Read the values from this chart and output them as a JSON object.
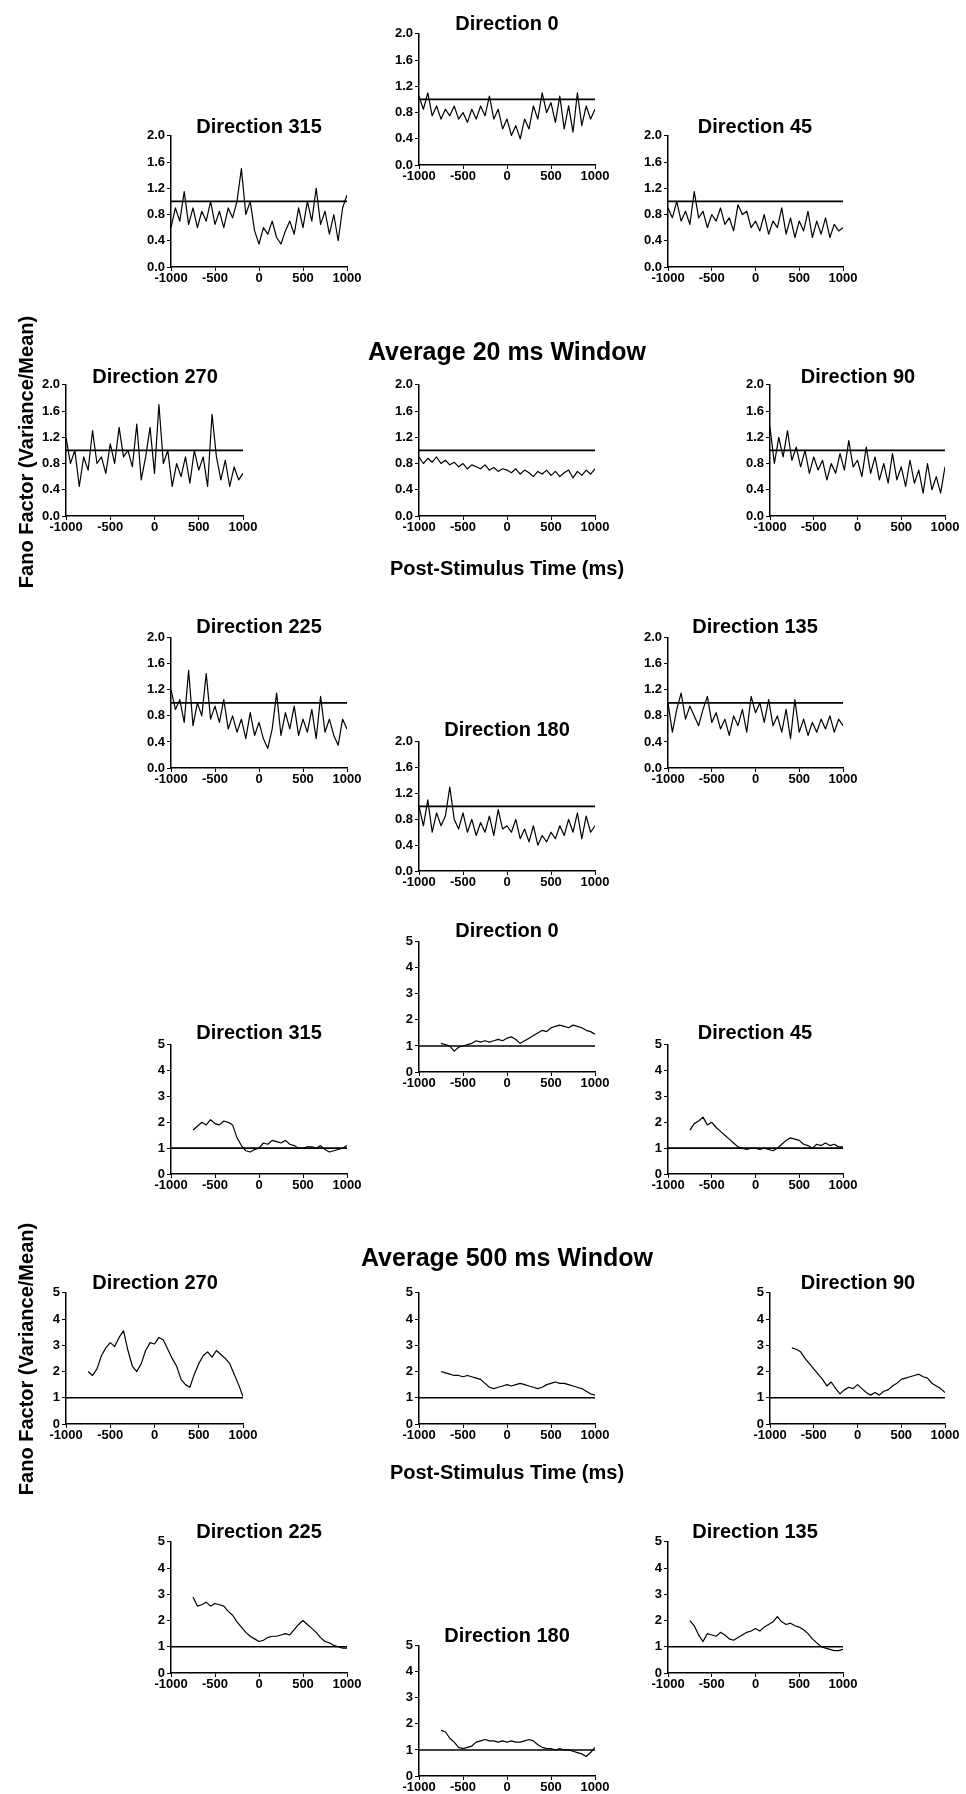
{
  "chart_data": [
    {
      "type": "line",
      "title": "Direction 0",
      "x": [
        -1000,
        -950,
        -900,
        -850,
        -800,
        -750,
        -700,
        -650,
        -600,
        -550,
        -500,
        -450,
        -400,
        -350,
        -300,
        -250,
        -200,
        -150,
        -100,
        -50,
        0,
        50,
        100,
        150,
        200,
        250,
        300,
        350,
        400,
        450,
        500,
        550,
        600,
        650,
        700,
        750,
        800,
        850,
        900,
        950,
        1000
      ],
      "values": [
        1.05,
        0.85,
        1.1,
        0.75,
        0.9,
        0.7,
        0.85,
        0.75,
        0.9,
        0.7,
        0.8,
        0.65,
        0.85,
        0.7,
        0.9,
        0.75,
        1.05,
        0.7,
        0.85,
        0.55,
        0.7,
        0.45,
        0.6,
        0.4,
        0.7,
        0.55,
        0.9,
        0.7,
        1.1,
        0.8,
        0.95,
        0.65,
        1.05,
        0.55,
        0.9,
        0.5,
        1.1,
        0.6,
        0.9,
        0.7,
        0.85
      ],
      "color": "#000000",
      "xlim": [
        -1000,
        1000
      ],
      "xticks": [
        -1000,
        -500,
        0,
        500,
        1000
      ],
      "ylim": [
        0,
        2
      ],
      "yticks": [
        {
          "value": 0,
          "label": "0.0"
        },
        {
          "value": 0.4,
          "label": "0.4"
        },
        {
          "value": 0.8,
          "label": "0.8"
        },
        {
          "value": 1.2,
          "label": "1.2"
        },
        {
          "value": 1.6,
          "label": "1.6"
        },
        {
          "value": 2,
          "label": "2.0"
        }
      ],
      "ref_lines": [
        {
          "axis": "y",
          "value": 1
        }
      ]
    },
    {
      "type": "line",
      "title": "Direction 315",
      "x": [
        -1000,
        -950,
        -900,
        -850,
        -800,
        -750,
        -700,
        -650,
        -600,
        -550,
        -500,
        -450,
        -400,
        -350,
        -300,
        -250,
        -200,
        -150,
        -100,
        -50,
        0,
        50,
        100,
        150,
        200,
        250,
        300,
        350,
        400,
        450,
        500,
        550,
        600,
        650,
        700,
        750,
        800,
        850,
        900,
        950,
        1000
      ],
      "values": [
        0.6,
        0.9,
        0.7,
        1.15,
        0.65,
        0.9,
        0.6,
        0.85,
        0.7,
        1.0,
        0.65,
        0.85,
        0.6,
        0.9,
        0.75,
        1.0,
        1.5,
        0.8,
        1.0,
        0.55,
        0.35,
        0.6,
        0.5,
        0.7,
        0.45,
        0.35,
        0.55,
        0.7,
        0.5,
        0.9,
        0.6,
        1.0,
        0.7,
        1.2,
        0.65,
        0.85,
        0.5,
        0.8,
        0.4,
        0.9,
        1.1
      ],
      "color": "#000000",
      "xlim": [
        -1000,
        1000
      ],
      "xticks": [
        -1000,
        -500,
        0,
        500,
        1000
      ],
      "ylim": [
        0,
        2
      ],
      "yticks": [
        {
          "value": 0,
          "label": "0.0"
        },
        {
          "value": 0.4,
          "label": "0.4"
        },
        {
          "value": 0.8,
          "label": "0.8"
        },
        {
          "value": 1.2,
          "label": "1.2"
        },
        {
          "value": 1.6,
          "label": "1.6"
        },
        {
          "value": 2,
          "label": "2.0"
        }
      ],
      "ref_lines": [
        {
          "axis": "y",
          "value": 1
        }
      ]
    },
    {
      "type": "line",
      "title": "Direction 45",
      "x": [
        -1000,
        -950,
        -900,
        -850,
        -800,
        -750,
        -700,
        -650,
        -600,
        -550,
        -500,
        -450,
        -400,
        -350,
        -300,
        -250,
        -200,
        -150,
        -100,
        -50,
        0,
        50,
        100,
        150,
        200,
        250,
        300,
        350,
        400,
        450,
        500,
        550,
        600,
        650,
        700,
        750,
        800,
        850,
        900,
        950,
        1000
      ],
      "values": [
        0.9,
        0.75,
        1.0,
        0.7,
        0.85,
        0.65,
        1.15,
        0.75,
        0.85,
        0.6,
        0.8,
        0.7,
        0.9,
        0.65,
        0.75,
        0.55,
        0.95,
        0.8,
        0.85,
        0.6,
        0.7,
        0.55,
        0.8,
        0.5,
        0.7,
        0.6,
        0.9,
        0.5,
        0.75,
        0.45,
        0.7,
        0.55,
        0.85,
        0.45,
        0.7,
        0.5,
        0.75,
        0.45,
        0.65,
        0.55,
        0.6
      ],
      "color": "#000000",
      "xlim": [
        -1000,
        1000
      ],
      "xticks": [
        -1000,
        -500,
        0,
        500,
        1000
      ],
      "ylim": [
        0,
        2
      ],
      "yticks": [
        {
          "value": 0,
          "label": "0.0"
        },
        {
          "value": 0.4,
          "label": "0.4"
        },
        {
          "value": 0.8,
          "label": "0.8"
        },
        {
          "value": 1.2,
          "label": "1.2"
        },
        {
          "value": 1.6,
          "label": "1.6"
        },
        {
          "value": 2,
          "label": "2.0"
        }
      ],
      "ref_lines": [
        {
          "axis": "y",
          "value": 1
        }
      ]
    },
    {
      "type": "line",
      "title": "Direction 270",
      "ylabel": "Fano Factor (Variance/Mean)",
      "x": [
        -1000,
        -950,
        -900,
        -850,
        -800,
        -750,
        -700,
        -650,
        -600,
        -550,
        -500,
        -450,
        -400,
        -350,
        -300,
        -250,
        -200,
        -150,
        -100,
        -50,
        0,
        50,
        100,
        150,
        200,
        250,
        300,
        350,
        400,
        450,
        500,
        550,
        600,
        650,
        700,
        750,
        800,
        850,
        900,
        950,
        1000
      ],
      "values": [
        1.2,
        0.8,
        1.0,
        0.45,
        0.9,
        0.7,
        1.3,
        0.8,
        0.9,
        0.65,
        1.1,
        0.8,
        1.35,
        0.9,
        1.0,
        0.75,
        1.4,
        0.55,
        0.9,
        1.35,
        0.65,
        1.7,
        0.8,
        1.0,
        0.45,
        0.8,
        0.6,
        0.9,
        0.5,
        1.0,
        0.7,
        0.9,
        0.45,
        1.55,
        0.9,
        0.55,
        0.85,
        0.45,
        0.75,
        0.55,
        0.65
      ],
      "color": "#000000",
      "xlim": [
        -1000,
        1000
      ],
      "xticks": [
        -1000,
        -500,
        0,
        500,
        1000
      ],
      "ylim": [
        0,
        2
      ],
      "yticks": [
        {
          "value": 0,
          "label": "0.0"
        },
        {
          "value": 0.4,
          "label": "0.4"
        },
        {
          "value": 0.8,
          "label": "0.8"
        },
        {
          "value": 1.2,
          "label": "1.2"
        },
        {
          "value": 1.6,
          "label": "1.6"
        },
        {
          "value": 2,
          "label": "2.0"
        }
      ],
      "ref_lines": [
        {
          "axis": "y",
          "value": 1
        }
      ]
    },
    {
      "type": "line",
      "title": "Average 20 ms Window",
      "xlabel": "Post-Stimulus Time (ms)",
      "x": [
        -1000,
        -950,
        -900,
        -850,
        -800,
        -750,
        -700,
        -650,
        -600,
        -550,
        -500,
        -450,
        -400,
        -350,
        -300,
        -250,
        -200,
        -150,
        -100,
        -50,
        0,
        50,
        100,
        150,
        200,
        250,
        300,
        350,
        400,
        450,
        500,
        550,
        600,
        650,
        700,
        750,
        800,
        850,
        900,
        950,
        1000
      ],
      "values": [
        0.9,
        0.8,
        0.88,
        0.82,
        0.9,
        0.8,
        0.85,
        0.78,
        0.82,
        0.75,
        0.8,
        0.72,
        0.78,
        0.75,
        0.72,
        0.78,
        0.7,
        0.74,
        0.68,
        0.72,
        0.7,
        0.66,
        0.72,
        0.64,
        0.7,
        0.66,
        0.6,
        0.68,
        0.64,
        0.7,
        0.62,
        0.68,
        0.6,
        0.66,
        0.7,
        0.58,
        0.68,
        0.62,
        0.7,
        0.64,
        0.72
      ],
      "color": "#000000",
      "xlim": [
        -1000,
        1000
      ],
      "xticks": [
        -1000,
        -500,
        0,
        500,
        1000
      ],
      "ylim": [
        0,
        2
      ],
      "yticks": [
        {
          "value": 0,
          "label": "0.0"
        },
        {
          "value": 0.4,
          "label": "0.4"
        },
        {
          "value": 0.8,
          "label": "0.8"
        },
        {
          "value": 1.2,
          "label": "1.2"
        },
        {
          "value": 1.6,
          "label": "1.6"
        },
        {
          "value": 2,
          "label": "2.0"
        }
      ],
      "ref_lines": [
        {
          "axis": "y",
          "value": 1
        }
      ]
    },
    {
      "type": "line",
      "title": "Direction 90",
      "x": [
        -1000,
        -950,
        -900,
        -850,
        -800,
        -750,
        -700,
        -650,
        -600,
        -550,
        -500,
        -450,
        -400,
        -350,
        -300,
        -250,
        -200,
        -150,
        -100,
        -50,
        0,
        50,
        100,
        150,
        200,
        250,
        300,
        350,
        400,
        450,
        500,
        550,
        600,
        650,
        700,
        750,
        800,
        850,
        900,
        950,
        1000
      ],
      "values": [
        1.35,
        0.8,
        1.2,
        0.9,
        1.3,
        0.85,
        1.05,
        0.75,
        1.0,
        0.65,
        0.9,
        0.7,
        0.85,
        0.55,
        0.8,
        0.65,
        0.95,
        0.7,
        1.15,
        0.75,
        0.85,
        0.6,
        1.05,
        0.65,
        0.9,
        0.55,
        0.8,
        0.5,
        0.95,
        0.55,
        0.75,
        0.45,
        0.85,
        0.5,
        0.7,
        0.35,
        0.8,
        0.4,
        0.6,
        0.35,
        0.75
      ],
      "color": "#000000",
      "xlim": [
        -1000,
        1000
      ],
      "xticks": [
        -1000,
        -500,
        0,
        500,
        1000
      ],
      "ylim": [
        0,
        2
      ],
      "yticks": [
        {
          "value": 0,
          "label": "0.0"
        },
        {
          "value": 0.4,
          "label": "0.4"
        },
        {
          "value": 0.8,
          "label": "0.8"
        },
        {
          "value": 1.2,
          "label": "1.2"
        },
        {
          "value": 1.6,
          "label": "1.6"
        },
        {
          "value": 2,
          "label": "2.0"
        }
      ],
      "ref_lines": [
        {
          "axis": "y",
          "value": 1
        }
      ]
    },
    {
      "type": "line",
      "title": "Direction 225",
      "x": [
        -1000,
        -950,
        -900,
        -850,
        -800,
        -750,
        -700,
        -650,
        -600,
        -550,
        -500,
        -450,
        -400,
        -350,
        -300,
        -250,
        -200,
        -150,
        -100,
        -50,
        0,
        50,
        100,
        150,
        200,
        250,
        300,
        350,
        400,
        450,
        500,
        550,
        600,
        650,
        700,
        750,
        800,
        850,
        900,
        950,
        1000
      ],
      "values": [
        1.2,
        0.9,
        1.05,
        0.7,
        1.5,
        0.65,
        1.0,
        0.8,
        1.45,
        0.75,
        0.95,
        0.7,
        1.05,
        0.6,
        0.8,
        0.55,
        0.75,
        0.45,
        0.85,
        0.5,
        0.7,
        0.45,
        0.3,
        0.6,
        1.15,
        0.5,
        0.85,
        0.6,
        0.95,
        0.5,
        0.75,
        0.55,
        0.9,
        0.45,
        1.1,
        0.55,
        0.75,
        0.5,
        0.35,
        0.75,
        0.6
      ],
      "color": "#000000",
      "xlim": [
        -1000,
        1000
      ],
      "xticks": [
        -1000,
        -500,
        0,
        500,
        1000
      ],
      "ylim": [
        0,
        2
      ],
      "yticks": [
        {
          "value": 0,
          "label": "0.0"
        },
        {
          "value": 0.4,
          "label": "0.4"
        },
        {
          "value": 0.8,
          "label": "0.8"
        },
        {
          "value": 1.2,
          "label": "1.2"
        },
        {
          "value": 1.6,
          "label": "1.6"
        },
        {
          "value": 2,
          "label": "2.0"
        }
      ],
      "ref_lines": [
        {
          "axis": "y",
          "value": 1
        }
      ]
    },
    {
      "type": "line",
      "title": "Direction 135",
      "x": [
        -1000,
        -950,
        -900,
        -850,
        -800,
        -750,
        -700,
        -650,
        -600,
        -550,
        -500,
        -450,
        -400,
        -350,
        -300,
        -250,
        -200,
        -150,
        -100,
        -50,
        0,
        50,
        100,
        150,
        200,
        250,
        300,
        350,
        400,
        450,
        500,
        550,
        600,
        650,
        700,
        750,
        800,
        850,
        900,
        950,
        1000
      ],
      "values": [
        1.0,
        0.55,
        0.9,
        1.15,
        0.75,
        0.95,
        0.8,
        0.65,
        0.9,
        1.1,
        0.7,
        0.85,
        0.6,
        0.75,
        0.5,
        0.8,
        0.65,
        0.9,
        0.55,
        1.1,
        0.85,
        1.0,
        0.7,
        1.05,
        0.65,
        0.8,
        0.55,
        0.9,
        0.45,
        1.05,
        0.55,
        0.75,
        0.5,
        0.7,
        0.55,
        0.75,
        0.6,
        0.8,
        0.55,
        0.75,
        0.65
      ],
      "color": "#000000",
      "xlim": [
        -1000,
        1000
      ],
      "xticks": [
        -1000,
        -500,
        0,
        500,
        1000
      ],
      "ylim": [
        0,
        2
      ],
      "yticks": [
        {
          "value": 0,
          "label": "0.0"
        },
        {
          "value": 0.4,
          "label": "0.4"
        },
        {
          "value": 0.8,
          "label": "0.8"
        },
        {
          "value": 1.2,
          "label": "1.2"
        },
        {
          "value": 1.6,
          "label": "1.6"
        },
        {
          "value": 2,
          "label": "2.0"
        }
      ],
      "ref_lines": [
        {
          "axis": "y",
          "value": 1
        }
      ]
    },
    {
      "type": "line",
      "title": "Direction 180",
      "x": [
        -1000,
        -950,
        -900,
        -850,
        -800,
        -750,
        -700,
        -650,
        -600,
        -550,
        -500,
        -450,
        -400,
        -350,
        -300,
        -250,
        -200,
        -150,
        -100,
        -50,
        0,
        50,
        100,
        150,
        200,
        250,
        300,
        350,
        400,
        450,
        500,
        550,
        600,
        650,
        700,
        750,
        800,
        850,
        900,
        950,
        1000
      ],
      "values": [
        1.0,
        0.7,
        1.1,
        0.6,
        0.9,
        0.7,
        0.85,
        1.3,
        0.8,
        0.65,
        0.9,
        0.6,
        0.8,
        0.55,
        0.75,
        0.6,
        0.85,
        0.55,
        0.95,
        0.65,
        0.7,
        0.6,
        0.8,
        0.5,
        0.65,
        0.45,
        0.7,
        0.4,
        0.55,
        0.45,
        0.6,
        0.5,
        0.7,
        0.55,
        0.8,
        0.6,
        0.9,
        0.5,
        0.85,
        0.6,
        0.7
      ],
      "color": "#000000",
      "xlim": [
        -1000,
        1000
      ],
      "xticks": [
        -1000,
        -500,
        0,
        500,
        1000
      ],
      "ylim": [
        0,
        2
      ],
      "yticks": [
        {
          "value": 0,
          "label": "0.0"
        },
        {
          "value": 0.4,
          "label": "0.4"
        },
        {
          "value": 0.8,
          "label": "0.8"
        },
        {
          "value": 1.2,
          "label": "1.2"
        },
        {
          "value": 1.6,
          "label": "1.6"
        },
        {
          "value": 2,
          "label": "2.0"
        }
      ],
      "ref_lines": [
        {
          "axis": "y",
          "value": 1
        }
      ]
    },
    {
      "type": "line",
      "title": "Direction 0",
      "x": [
        -750,
        -700,
        -650,
        -600,
        -550,
        -500,
        -450,
        -400,
        -350,
        -300,
        -250,
        -200,
        -150,
        -100,
        -50,
        0,
        50,
        100,
        150,
        200,
        250,
        300,
        350,
        400,
        450,
        500,
        550,
        600,
        650,
        700,
        750,
        800,
        850,
        900,
        950,
        1000
      ],
      "values": [
        1.1,
        1.05,
        1.0,
        0.8,
        0.95,
        1.0,
        1.05,
        1.1,
        1.2,
        1.15,
        1.2,
        1.15,
        1.2,
        1.25,
        1.2,
        1.3,
        1.35,
        1.25,
        1.1,
        1.2,
        1.3,
        1.4,
        1.5,
        1.6,
        1.55,
        1.7,
        1.75,
        1.8,
        1.75,
        1.7,
        1.8,
        1.75,
        1.7,
        1.6,
        1.55,
        1.45
      ],
      "color": "#000000",
      "xlim": [
        -1000,
        1000
      ],
      "xticks": [
        -1000,
        -500,
        0,
        500,
        1000
      ],
      "ylim": [
        0,
        5
      ],
      "yticks": [
        0,
        1,
        2,
        3,
        4,
        5
      ],
      "ref_lines": [
        {
          "axis": "y",
          "value": 1
        }
      ]
    },
    {
      "type": "line",
      "title": "Direction 315",
      "x": [
        -750,
        -700,
        -650,
        -600,
        -550,
        -500,
        -450,
        -400,
        -350,
        -300,
        -250,
        -200,
        -150,
        -100,
        -50,
        0,
        50,
        100,
        150,
        200,
        250,
        300,
        350,
        400,
        450,
        500,
        550,
        600,
        650,
        700,
        750,
        800,
        850,
        900,
        950,
        1000
      ],
      "values": [
        1.7,
        1.85,
        2.0,
        1.9,
        2.1,
        1.95,
        1.9,
        2.05,
        2.0,
        1.9,
        1.4,
        1.1,
        0.9,
        0.85,
        0.95,
        1.0,
        1.2,
        1.15,
        1.3,
        1.25,
        1.2,
        1.3,
        1.15,
        1.1,
        1.0,
        1.0,
        1.05,
        1.05,
        1.0,
        1.1,
        0.95,
        0.85,
        0.9,
        0.95,
        1.0,
        1.1
      ],
      "color": "#000000",
      "xlim": [
        -1000,
        1000
      ],
      "xticks": [
        -1000,
        -500,
        0,
        500,
        1000
      ],
      "ylim": [
        0,
        5
      ],
      "yticks": [
        0,
        1,
        2,
        3,
        4,
        5
      ],
      "ref_lines": [
        {
          "axis": "y",
          "value": 1
        }
      ]
    },
    {
      "type": "line",
      "title": "Direction 45",
      "x": [
        -750,
        -700,
        -650,
        -600,
        -550,
        -500,
        -450,
        -400,
        -350,
        -300,
        -250,
        -200,
        -150,
        -100,
        -50,
        0,
        50,
        100,
        150,
        200,
        250,
        300,
        350,
        400,
        450,
        500,
        550,
        600,
        650,
        700,
        750,
        800,
        850,
        900,
        950,
        1000
      ],
      "values": [
        1.7,
        1.95,
        2.05,
        2.2,
        1.9,
        2.0,
        1.8,
        1.65,
        1.5,
        1.35,
        1.2,
        1.05,
        1.0,
        0.95,
        1.0,
        1.0,
        0.95,
        1.0,
        0.95,
        0.9,
        1.0,
        1.15,
        1.3,
        1.4,
        1.35,
        1.3,
        1.15,
        1.1,
        1.0,
        1.15,
        1.1,
        1.2,
        1.1,
        1.15,
        1.05,
        1.05
      ],
      "color": "#000000",
      "xlim": [
        -1000,
        1000
      ],
      "xticks": [
        -1000,
        -500,
        0,
        500,
        1000
      ],
      "ylim": [
        0,
        5
      ],
      "yticks": [
        0,
        1,
        2,
        3,
        4,
        5
      ],
      "ref_lines": [
        {
          "axis": "y",
          "value": 1
        }
      ]
    },
    {
      "type": "line",
      "title": "Direction 270",
      "ylabel": "Fano Factor (Variance/Mean)",
      "x": [
        -750,
        -700,
        -650,
        -600,
        -550,
        -500,
        -450,
        -400,
        -350,
        -300,
        -250,
        -200,
        -150,
        -100,
        -50,
        0,
        50,
        100,
        150,
        200,
        250,
        300,
        350,
        400,
        450,
        500,
        550,
        600,
        650,
        700,
        750,
        800,
        850,
        900,
        950,
        1000
      ],
      "values": [
        2.0,
        1.85,
        2.1,
        2.6,
        2.9,
        3.1,
        2.95,
        3.3,
        3.55,
        2.8,
        2.2,
        2.0,
        2.3,
        2.8,
        3.1,
        3.05,
        3.3,
        3.2,
        2.85,
        2.5,
        2.2,
        1.7,
        1.5,
        1.4,
        1.9,
        2.3,
        2.6,
        2.75,
        2.55,
        2.8,
        2.65,
        2.5,
        2.3,
        1.9,
        1.5,
        1.05
      ],
      "color": "#000000",
      "xlim": [
        -1000,
        1000
      ],
      "xticks": [
        -1000,
        -500,
        0,
        500,
        1000
      ],
      "ylim": [
        0,
        5
      ],
      "yticks": [
        0,
        1,
        2,
        3,
        4,
        5
      ],
      "ref_lines": [
        {
          "axis": "y",
          "value": 1
        }
      ]
    },
    {
      "type": "line",
      "title": "Average 500 ms Window",
      "xlabel": "Post-Stimulus Time (ms)",
      "x": [
        -750,
        -700,
        -650,
        -600,
        -550,
        -500,
        -450,
        -400,
        -350,
        -300,
        -250,
        -200,
        -150,
        -100,
        -50,
        0,
        50,
        100,
        150,
        200,
        250,
        300,
        350,
        400,
        450,
        500,
        550,
        600,
        650,
        700,
        750,
        800,
        850,
        900,
        950,
        1000
      ],
      "values": [
        2.0,
        1.95,
        1.9,
        1.85,
        1.85,
        1.8,
        1.85,
        1.8,
        1.75,
        1.7,
        1.55,
        1.4,
        1.35,
        1.4,
        1.45,
        1.5,
        1.45,
        1.5,
        1.55,
        1.5,
        1.45,
        1.4,
        1.35,
        1.4,
        1.5,
        1.55,
        1.6,
        1.55,
        1.55,
        1.5,
        1.45,
        1.4,
        1.35,
        1.25,
        1.15,
        1.1
      ],
      "color": "#000000",
      "xlim": [
        -1000,
        1000
      ],
      "xticks": [
        -1000,
        -500,
        0,
        500,
        1000
      ],
      "ylim": [
        0,
        5
      ],
      "yticks": [
        0,
        1,
        2,
        3,
        4,
        5
      ],
      "ref_lines": [
        {
          "axis": "y",
          "value": 1
        }
      ]
    },
    {
      "type": "line",
      "title": "Direction 90",
      "x": [
        -750,
        -700,
        -650,
        -600,
        -550,
        -500,
        -450,
        -400,
        -350,
        -300,
        -250,
        -200,
        -150,
        -100,
        -50,
        0,
        50,
        100,
        150,
        200,
        250,
        300,
        350,
        400,
        450,
        500,
        550,
        600,
        650,
        700,
        750,
        800,
        850,
        900,
        950,
        1000
      ],
      "values": [
        2.9,
        2.85,
        2.75,
        2.5,
        2.3,
        2.1,
        1.9,
        1.7,
        1.45,
        1.6,
        1.35,
        1.15,
        1.3,
        1.4,
        1.35,
        1.5,
        1.35,
        1.2,
        1.1,
        1.2,
        1.1,
        1.25,
        1.3,
        1.45,
        1.55,
        1.7,
        1.75,
        1.8,
        1.85,
        1.9,
        1.8,
        1.75,
        1.55,
        1.45,
        1.35,
        1.2
      ],
      "color": "#000000",
      "xlim": [
        -1000,
        1000
      ],
      "xticks": [
        -1000,
        -500,
        0,
        500,
        1000
      ],
      "ylim": [
        0,
        5
      ],
      "yticks": [
        0,
        1,
        2,
        3,
        4,
        5
      ],
      "ref_lines": [
        {
          "axis": "y",
          "value": 1
        }
      ]
    },
    {
      "type": "line",
      "title": "Direction 225",
      "x": [
        -750,
        -700,
        -650,
        -600,
        -550,
        -500,
        -450,
        -400,
        -350,
        -300,
        -250,
        -200,
        -150,
        -100,
        -50,
        0,
        50,
        100,
        150,
        200,
        250,
        300,
        350,
        400,
        450,
        500,
        550,
        600,
        650,
        700,
        750,
        800,
        850,
        900,
        950,
        1000
      ],
      "values": [
        2.9,
        2.55,
        2.6,
        2.7,
        2.55,
        2.65,
        2.6,
        2.55,
        2.35,
        2.2,
        1.95,
        1.75,
        1.55,
        1.4,
        1.3,
        1.2,
        1.25,
        1.35,
        1.4,
        1.4,
        1.45,
        1.5,
        1.45,
        1.65,
        1.85,
        2.0,
        1.85,
        1.7,
        1.55,
        1.35,
        1.2,
        1.15,
        1.05,
        1.0,
        0.95,
        0.95
      ],
      "color": "#000000",
      "xlim": [
        -1000,
        1000
      ],
      "xticks": [
        -1000,
        -500,
        0,
        500,
        1000
      ],
      "ylim": [
        0,
        5
      ],
      "yticks": [
        0,
        1,
        2,
        3,
        4,
        5
      ],
      "ref_lines": [
        {
          "axis": "y",
          "value": 1
        }
      ]
    },
    {
      "type": "line",
      "title": "Direction 135",
      "x": [
        -750,
        -700,
        -650,
        -600,
        -550,
        -500,
        -450,
        -400,
        -350,
        -300,
        -250,
        -200,
        -150,
        -100,
        -50,
        0,
        50,
        100,
        150,
        200,
        250,
        300,
        350,
        400,
        450,
        500,
        550,
        600,
        650,
        700,
        750,
        800,
        850,
        900,
        950,
        1000
      ],
      "values": [
        2.0,
        1.8,
        1.45,
        1.2,
        1.5,
        1.45,
        1.4,
        1.55,
        1.45,
        1.3,
        1.25,
        1.35,
        1.45,
        1.55,
        1.6,
        1.7,
        1.6,
        1.75,
        1.85,
        1.95,
        2.15,
        1.95,
        1.85,
        1.9,
        1.8,
        1.75,
        1.65,
        1.5,
        1.3,
        1.15,
        1.0,
        0.95,
        0.9,
        0.85,
        0.85,
        0.9
      ],
      "color": "#000000",
      "xlim": [
        -1000,
        1000
      ],
      "xticks": [
        -1000,
        -500,
        0,
        500,
        1000
      ],
      "ylim": [
        0,
        5
      ],
      "yticks": [
        0,
        1,
        2,
        3,
        4,
        5
      ],
      "ref_lines": [
        {
          "axis": "y",
          "value": 1
        }
      ]
    },
    {
      "type": "line",
      "title": "Direction 180",
      "x": [
        -750,
        -700,
        -650,
        -600,
        -550,
        -500,
        -450,
        -400,
        -350,
        -300,
        -250,
        -200,
        -150,
        -100,
        -50,
        0,
        50,
        100,
        150,
        200,
        250,
        300,
        350,
        400,
        450,
        500,
        550,
        600,
        650,
        700,
        750,
        800,
        850,
        900,
        950,
        1000
      ],
      "values": [
        1.75,
        1.7,
        1.45,
        1.3,
        1.1,
        1.05,
        1.1,
        1.15,
        1.3,
        1.35,
        1.4,
        1.35,
        1.35,
        1.3,
        1.35,
        1.3,
        1.35,
        1.3,
        1.3,
        1.35,
        1.4,
        1.35,
        1.2,
        1.1,
        1.05,
        1.05,
        1.0,
        1.05,
        1.0,
        1.0,
        0.95,
        0.9,
        0.85,
        0.75,
        0.9,
        1.1
      ],
      "color": "#000000",
      "xlim": [
        -1000,
        1000
      ],
      "xticks": [
        -1000,
        -500,
        0,
        500,
        1000
      ],
      "ylim": [
        0,
        5
      ],
      "yticks": [
        0,
        1,
        2,
        3,
        4,
        5
      ],
      "ref_lines": [
        {
          "axis": "y",
          "value": 1
        }
      ]
    }
  ]
}
